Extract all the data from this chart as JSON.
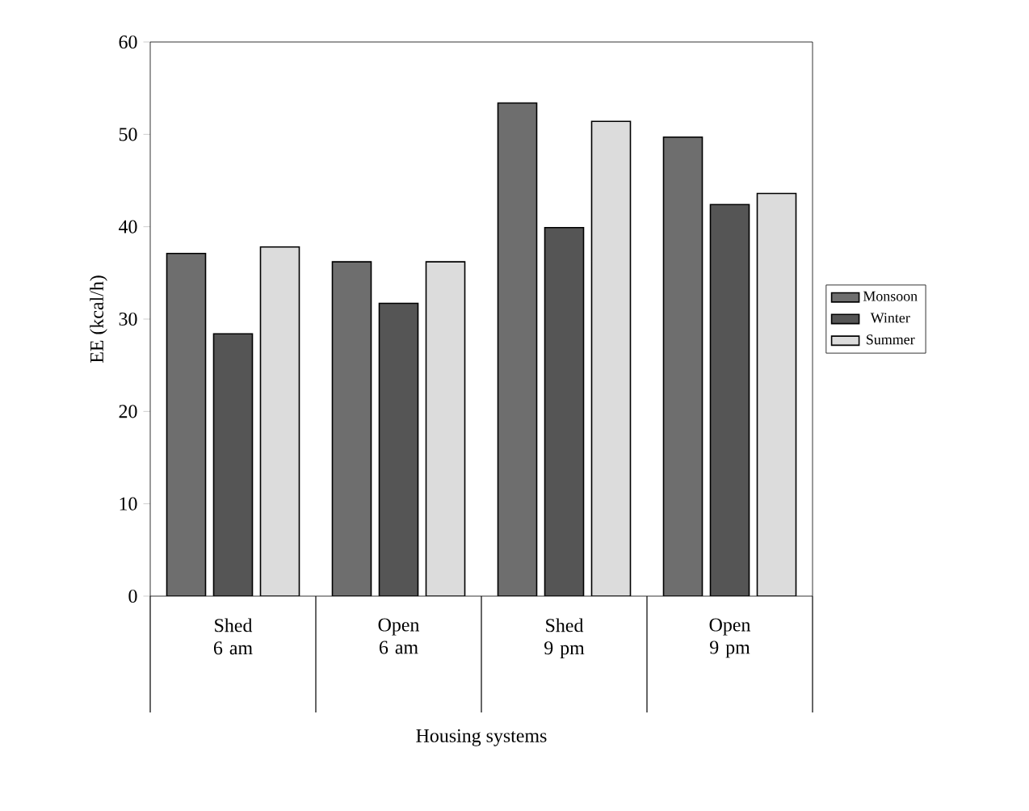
{
  "chart_data": {
    "type": "bar",
    "xlabel": "Housing systems",
    "ylabel": "EE (kcal/h)",
    "categories": [
      "Shed 6 am",
      "Open 6 am",
      "Shed 9 pm",
      "Open 9 pm"
    ],
    "series": [
      {
        "name": "Monsoon",
        "color": "#6e6e6e",
        "values": [
          37.1,
          36.2,
          53.4,
          49.7
        ]
      },
      {
        "name": "Winter",
        "color": "#555555",
        "values": [
          28.4,
          31.7,
          39.9,
          42.4
        ]
      },
      {
        "name": "Summer",
        "color": "#dcdcdc",
        "values": [
          37.8,
          36.2,
          51.4,
          43.6
        ]
      }
    ],
    "ylim": [
      0,
      60
    ],
    "yticks": [
      0,
      10,
      20,
      30,
      40,
      50,
      60
    ],
    "grid": false,
    "legend": "right"
  }
}
